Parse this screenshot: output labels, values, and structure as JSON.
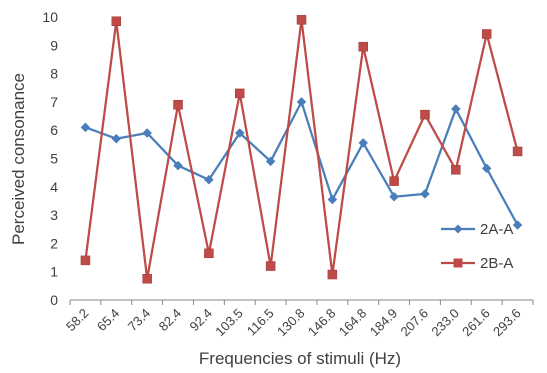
{
  "chart_data": {
    "type": "line",
    "title": "",
    "xlabel": "Frequencies of stimuli (Hz)",
    "ylabel": "Perceived consonance",
    "categories": [
      "58.2",
      "65.4",
      "73.4",
      "82.4",
      "92.4",
      "103.5",
      "116.5",
      "130.8",
      "146.8",
      "164.8",
      "184.9",
      "207.6",
      "233.0",
      "261.6",
      "293.6"
    ],
    "ylim": [
      0,
      10
    ],
    "yticks": [
      0,
      1,
      2,
      3,
      4,
      5,
      6,
      7,
      8,
      9,
      10
    ],
    "grid": false,
    "legend_position": "right",
    "series": [
      {
        "name": "2A-A",
        "color": "#4A7EBB",
        "marker": "diamond",
        "values": [
          6.1,
          5.7,
          5.9,
          4.75,
          4.25,
          5.9,
          4.9,
          7.0,
          3.55,
          5.55,
          3.65,
          3.75,
          6.75,
          4.65,
          2.65
        ]
      },
      {
        "name": "2B-A",
        "color": "#BE4B48",
        "marker": "square",
        "values": [
          1.4,
          9.85,
          0.75,
          6.9,
          1.65,
          7.3,
          1.2,
          9.9,
          0.9,
          8.95,
          4.2,
          6.55,
          4.6,
          9.4,
          5.25
        ]
      }
    ]
  }
}
